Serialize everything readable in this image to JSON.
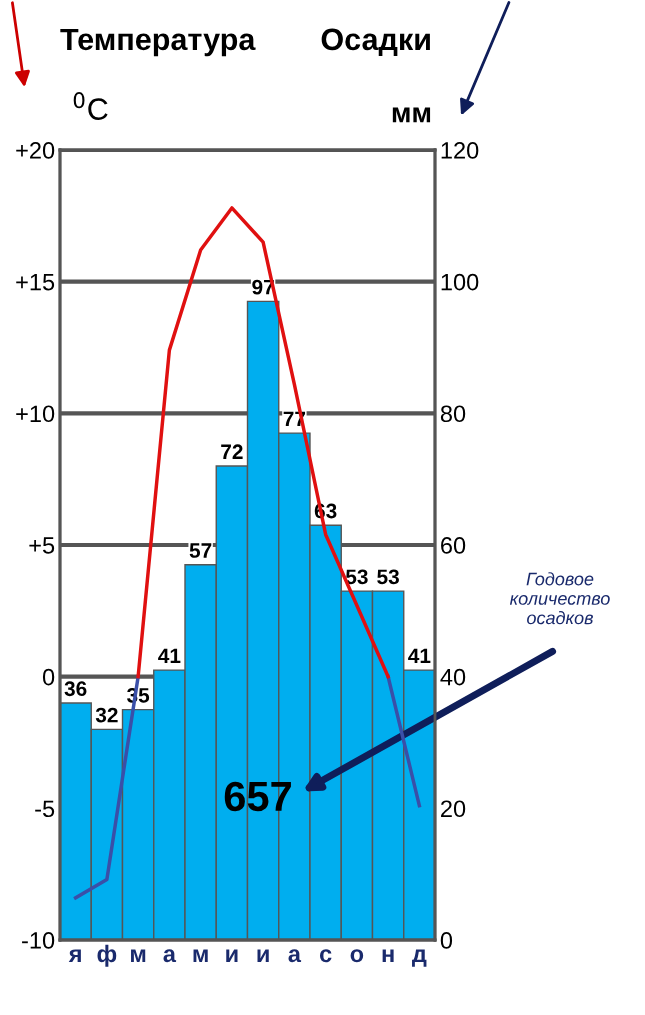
{
  "chart_data": {
    "type": "bar",
    "categories": [
      "я",
      "ф",
      "м",
      "а",
      "м",
      "и",
      "и",
      "а",
      "с",
      "о",
      "н",
      "д"
    ],
    "ylabel": "Температура",
    "y2label": "Осадки",
    "ylim": [
      -10,
      20
    ],
    "yticks": [
      {
        "value": 20,
        "label": "+20"
      },
      {
        "value": 15,
        "label": "+15"
      },
      {
        "value": 10,
        "label": "+10"
      },
      {
        "value": 5,
        "label": "+5"
      },
      0,
      -5,
      -10
    ],
    "y2lim": [
      0,
      120
    ],
    "y2ticks": [
      0,
      20,
      40,
      60,
      80,
      100,
      120
    ],
    "grid": "y",
    "series": [
      {
        "axis": "y2",
        "color": "#00aeef",
        "values": [
          36,
          32,
          35,
          41,
          57,
          72,
          97,
          77,
          63,
          53,
          53,
          41
        ],
        "value_labels": [
          "36",
          "32",
          "35",
          "41",
          "57",
          "72",
          "97",
          "77",
          "63",
          "53",
          "53",
          "41"
        ]
      },
      {
        "type": "line",
        "color": "#3a4fa8",
        "values": [
          -8.4,
          -7.7,
          0,
          null,
          null,
          null,
          null,
          null,
          null,
          null,
          0,
          -4.9
        ]
      },
      {
        "type": "line",
        "color": "#e01010",
        "values": [
          null,
          null,
          0,
          12.4,
          16.2,
          17.8,
          16.5,
          11.1,
          5.4,
          2.7,
          0,
          null
        ]
      }
    ],
    "annotations": [
      "$^{0}$C",
      "мм",
      "Годовое количество осадков",
      "657"
    ]
  }
}
